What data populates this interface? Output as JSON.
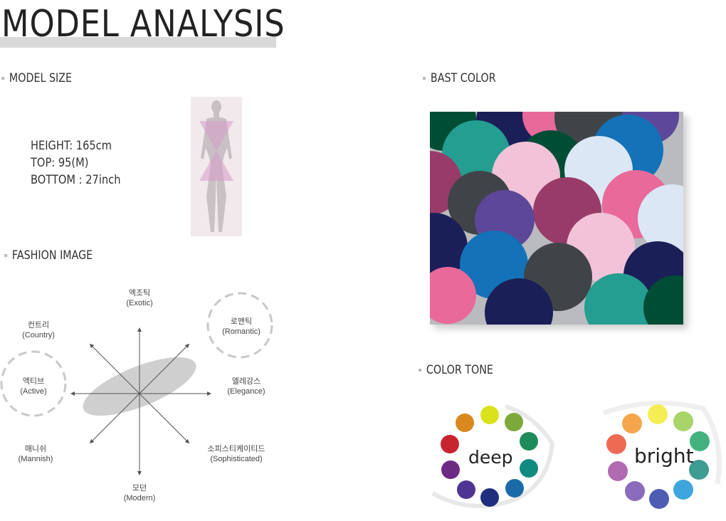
{
  "page": {
    "title": "MODEL ANALYSIS"
  },
  "model_size": {
    "label": "MODEL SIZE",
    "height": "HEIGHT: 165cm",
    "top": "TOP: 95(M)",
    "bottom": "BOTTOM : 27inch"
  },
  "fashion_image": {
    "label": "FASHION IMAGE",
    "axes": [
      {
        "ko": "엑조틱",
        "en": "(Exotic)",
        "highlighted": false
      },
      {
        "ko": "로맨틱",
        "en": "(Romantic)",
        "highlighted": true
      },
      {
        "ko": "엘레강스",
        "en": "(Elegance)",
        "highlighted": false
      },
      {
        "ko": "소피스티케이티드",
        "en": "(Sophisticated)",
        "highlighted": false
      },
      {
        "ko": "모던",
        "en": "(Modern)",
        "highlighted": false
      },
      {
        "ko": "매니쉬",
        "en": "(Mannish)",
        "highlighted": false
      },
      {
        "ko": "액티브",
        "en": "(Active)",
        "highlighted": true
      },
      {
        "ko": "컨트리",
        "en": "(Country)",
        "highlighted": false
      }
    ]
  },
  "bast_color": {
    "label": "BAST COLOR",
    "palette": [
      "#004d36",
      "#239e91",
      "#1b1f57",
      "#404449",
      "#f2c3d8",
      "#993b69",
      "#1472b8",
      "#e9699a",
      "#dbe7f5",
      "#5d4799",
      "#b9bbbf"
    ]
  },
  "color_tone": {
    "label": "COLOR TONE",
    "deep": {
      "word": "deep",
      "colors": [
        "#d9e21a",
        "#7da93a",
        "#1e8c5a",
        "#138a7f",
        "#1a6aa8",
        "#1f2f7e",
        "#4f3592",
        "#6d2a83",
        "#c8242f",
        "#d9871f"
      ]
    },
    "bright": {
      "word": "bright",
      "colors": [
        "#f4ee54",
        "#a8d46a",
        "#44b27f",
        "#3f9c92",
        "#3ea6dd",
        "#4e5db3",
        "#8a6bbd",
        "#b06ab2",
        "#ee6a52",
        "#f5a64d"
      ]
    }
  }
}
